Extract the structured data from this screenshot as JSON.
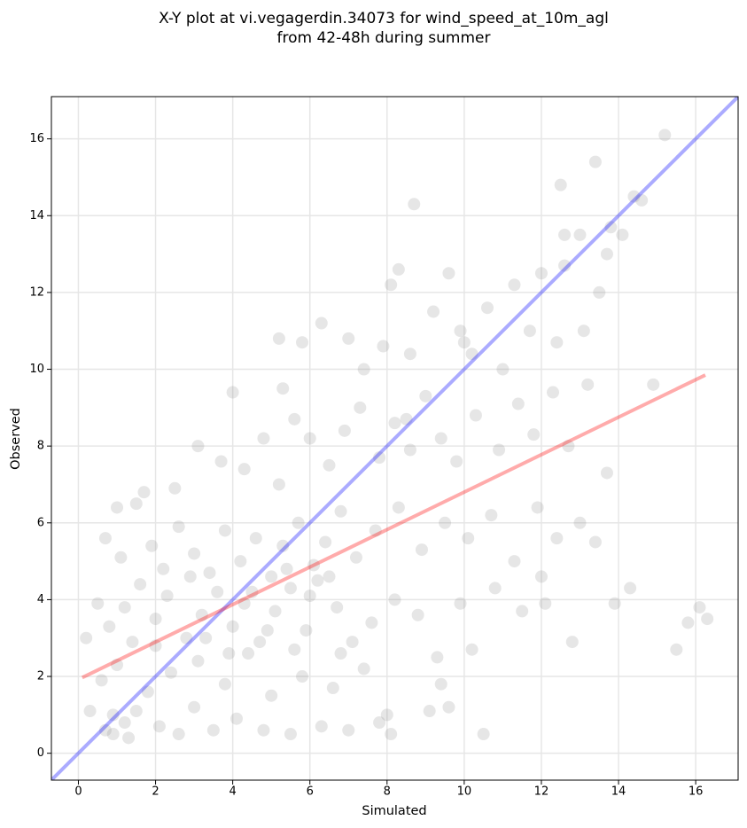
{
  "chart_data": {
    "type": "scatter",
    "title": [
      "X-Y plot at vi.vegagerdin.34073 for wind_speed_at_10m_agl",
      "from 42-48h during summer"
    ],
    "xlabel": "Simulated",
    "ylabel": "Observed",
    "xlim": [
      -0.7,
      17.1
    ],
    "ylim": [
      -0.7,
      17.1
    ],
    "xticks": [
      0,
      2,
      4,
      6,
      8,
      10,
      12,
      14,
      16
    ],
    "yticks": [
      0,
      2,
      4,
      6,
      8,
      10,
      12,
      14,
      16
    ],
    "grid": true,
    "color": "#808080",
    "points": [
      [
        0.9,
        0.5
      ],
      [
        1.2,
        0.8
      ],
      [
        0.7,
        0.6
      ],
      [
        1.5,
        1.1
      ],
      [
        2.1,
        0.7
      ],
      [
        2.6,
        0.5
      ],
      [
        3.0,
        1.2
      ],
      [
        3.5,
        0.6
      ],
      [
        4.1,
        0.9
      ],
      [
        4.8,
        0.6
      ],
      [
        5.5,
        0.5
      ],
      [
        6.3,
        0.7
      ],
      [
        7.0,
        0.6
      ],
      [
        7.8,
        0.8
      ],
      [
        8.1,
        0.5
      ],
      [
        10.5,
        0.5
      ],
      [
        0.3,
        1.1
      ],
      [
        0.6,
        1.9
      ],
      [
        1.0,
        2.3
      ],
      [
        1.8,
        1.6
      ],
      [
        2.4,
        2.1
      ],
      [
        3.1,
        2.4
      ],
      [
        3.8,
        1.8
      ],
      [
        4.4,
        2.6
      ],
      [
        5.0,
        1.5
      ],
      [
        5.8,
        2.0
      ],
      [
        6.6,
        1.7
      ],
      [
        7.4,
        2.2
      ],
      [
        8.0,
        1.0
      ],
      [
        9.1,
        1.1
      ],
      [
        9.6,
        1.2
      ],
      [
        10.2,
        2.7
      ],
      [
        9.4,
        1.8
      ],
      [
        0.2,
        3.0
      ],
      [
        0.5,
        3.9
      ],
      [
        0.8,
        3.3
      ],
      [
        1.2,
        3.8
      ],
      [
        1.6,
        4.4
      ],
      [
        2.0,
        3.5
      ],
      [
        2.3,
        4.1
      ],
      [
        2.8,
        3.0
      ],
      [
        3.2,
        3.6
      ],
      [
        3.6,
        4.2
      ],
      [
        4.0,
        3.3
      ],
      [
        4.3,
        3.9
      ],
      [
        4.7,
        2.9
      ],
      [
        5.1,
        3.7
      ],
      [
        5.5,
        4.3
      ],
      [
        5.9,
        3.2
      ],
      [
        6.2,
        4.5
      ],
      [
        6.7,
        3.8
      ],
      [
        7.1,
        2.9
      ],
      [
        7.6,
        3.4
      ],
      [
        8.2,
        4.0
      ],
      [
        8.8,
        3.6
      ],
      [
        9.3,
        2.5
      ],
      [
        9.9,
        3.9
      ],
      [
        10.8,
        4.3
      ],
      [
        11.5,
        3.7
      ],
      [
        12.1,
        3.9
      ],
      [
        14.3,
        4.3
      ],
      [
        13.9,
        3.9
      ],
      [
        15.5,
        2.7
      ],
      [
        15.8,
        3.4
      ],
      [
        16.1,
        3.8
      ],
      [
        16.3,
        3.5
      ],
      [
        12.8,
        2.9
      ],
      [
        0.7,
        5.6
      ],
      [
        1.1,
        5.1
      ],
      [
        1.5,
        6.5
      ],
      [
        1.9,
        5.4
      ],
      [
        2.2,
        4.8
      ],
      [
        2.6,
        5.9
      ],
      [
        3.0,
        5.2
      ],
      [
        3.4,
        4.7
      ],
      [
        3.8,
        5.8
      ],
      [
        4.2,
        5.0
      ],
      [
        4.6,
        5.6
      ],
      [
        5.0,
        4.6
      ],
      [
        5.3,
        5.4
      ],
      [
        5.7,
        6.0
      ],
      [
        6.1,
        4.9
      ],
      [
        6.4,
        5.5
      ],
      [
        6.8,
        6.3
      ],
      [
        7.2,
        5.1
      ],
      [
        7.7,
        5.8
      ],
      [
        8.3,
        6.4
      ],
      [
        8.9,
        5.3
      ],
      [
        9.5,
        6.0
      ],
      [
        10.1,
        5.6
      ],
      [
        10.7,
        6.2
      ],
      [
        11.3,
        5.0
      ],
      [
        11.9,
        6.4
      ],
      [
        12.4,
        5.6
      ],
      [
        13.0,
        6.0
      ],
      [
        13.4,
        5.5
      ],
      [
        12.0,
        4.6
      ],
      [
        1.0,
        6.4
      ],
      [
        1.7,
        6.8
      ],
      [
        2.5,
        6.9
      ],
      [
        3.1,
        8.0
      ],
      [
        3.7,
        7.6
      ],
      [
        4.3,
        7.4
      ],
      [
        4.8,
        8.2
      ],
      [
        5.2,
        7.0
      ],
      [
        5.6,
        8.7
      ],
      [
        6.0,
        8.2
      ],
      [
        6.5,
        7.5
      ],
      [
        6.9,
        8.4
      ],
      [
        7.3,
        9.0
      ],
      [
        7.8,
        7.7
      ],
      [
        8.2,
        8.6
      ],
      [
        8.6,
        7.9
      ],
      [
        9.0,
        9.3
      ],
      [
        9.4,
        8.2
      ],
      [
        9.8,
        7.6
      ],
      [
        10.3,
        8.8
      ],
      [
        10.9,
        7.9
      ],
      [
        11.4,
        9.1
      ],
      [
        11.8,
        8.3
      ],
      [
        12.3,
        9.4
      ],
      [
        12.7,
        8.0
      ],
      [
        13.2,
        9.6
      ],
      [
        13.7,
        7.3
      ],
      [
        14.9,
        9.6
      ],
      [
        4.0,
        9.4
      ],
      [
        5.3,
        9.5
      ],
      [
        5.2,
        10.8
      ],
      [
        5.8,
        10.7
      ],
      [
        6.3,
        11.2
      ],
      [
        7.0,
        10.8
      ],
      [
        7.4,
        10.0
      ],
      [
        7.9,
        10.6
      ],
      [
        8.1,
        12.2
      ],
      [
        8.3,
        12.6
      ],
      [
        8.6,
        10.4
      ],
      [
        8.7,
        14.3
      ],
      [
        9.2,
        11.5
      ],
      [
        9.6,
        12.5
      ],
      [
        9.9,
        11.0
      ],
      [
        10.2,
        10.4
      ],
      [
        10.6,
        11.6
      ],
      [
        11.0,
        10.0
      ],
      [
        11.3,
        12.2
      ],
      [
        11.7,
        11.0
      ],
      [
        12.0,
        12.5
      ],
      [
        12.4,
        10.7
      ],
      [
        12.6,
        12.7
      ],
      [
        13.0,
        13.5
      ],
      [
        13.1,
        11.0
      ],
      [
        13.5,
        12.0
      ],
      [
        13.7,
        13.0
      ],
      [
        13.8,
        13.7
      ],
      [
        14.1,
        13.5
      ],
      [
        14.4,
        14.5
      ],
      [
        14.6,
        14.4
      ],
      [
        12.5,
        14.8
      ],
      [
        13.4,
        15.4
      ],
      [
        15.2,
        16.1
      ],
      [
        12.6,
        13.5
      ],
      [
        10.0,
        10.7
      ],
      [
        8.5,
        8.7
      ],
      [
        3.3,
        3.0
      ],
      [
        4.5,
        4.2
      ],
      [
        5.4,
        4.8
      ],
      [
        6.0,
        4.1
      ],
      [
        6.5,
        4.6
      ],
      [
        2.0,
        2.8
      ],
      [
        2.9,
        4.6
      ],
      [
        4.9,
        3.2
      ],
      [
        3.9,
        2.6
      ],
      [
        5.6,
        2.7
      ],
      [
        6.8,
        2.6
      ],
      [
        1.4,
        2.9
      ],
      [
        0.9,
        1.0
      ],
      [
        1.3,
        0.4
      ]
    ],
    "lines": [
      {
        "color": "#0000ff",
        "x": [
          -0.7,
          17.1
        ],
        "y": [
          -0.7,
          17.1
        ]
      },
      {
        "color": "#ff0000",
        "x": [
          0.1,
          16.25
        ],
        "y": [
          1.97,
          9.85
        ]
      }
    ]
  }
}
